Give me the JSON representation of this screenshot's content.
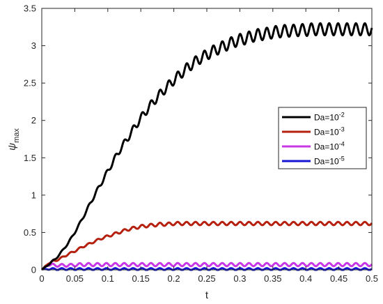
{
  "chart_data": {
    "type": "line",
    "xlabel": "t",
    "ylabel": "ψ",
    "ylabel_sub": "max",
    "xlim": [
      0,
      0.5
    ],
    "ylim": [
      0,
      3.5
    ],
    "xticks": [
      0,
      0.05,
      0.1,
      0.15,
      0.2,
      0.25,
      0.3,
      0.35,
      0.4,
      0.45,
      0.5
    ],
    "xtick_labels": [
      "0",
      "0.05",
      "0.1",
      "0.15",
      "0.2",
      "0.25",
      "0.3",
      "0.35",
      "0.4",
      "0.45",
      "0.5"
    ],
    "yticks": [
      0,
      0.5,
      1,
      1.5,
      2,
      2.5,
      3,
      3.5
    ],
    "ytick_labels": [
      "0",
      "0.5",
      "1",
      "1.5",
      "2",
      "2.5",
      "3",
      "3.5"
    ],
    "grid": false,
    "legend_position": "right",
    "series": [
      {
        "name": "Da=10",
        "name_sup": "-2",
        "color": "#000000",
        "x": [
          0,
          0.01,
          0.02,
          0.03,
          0.04,
          0.05,
          0.06,
          0.07,
          0.08,
          0.09,
          0.1,
          0.11,
          0.12,
          0.13,
          0.14,
          0.15,
          0.16,
          0.17,
          0.18,
          0.19,
          0.2,
          0.21,
          0.22,
          0.23,
          0.24,
          0.25,
          0.26,
          0.27,
          0.28,
          0.29,
          0.3,
          0.31,
          0.32,
          0.33,
          0.34,
          0.35,
          0.36,
          0.37,
          0.38,
          0.39,
          0.4,
          0.41,
          0.42,
          0.43,
          0.44,
          0.45,
          0.46,
          0.47,
          0.48,
          0.49,
          0.5
        ],
        "y": [
          0,
          0.07,
          0.14,
          0.24,
          0.36,
          0.5,
          0.66,
          0.83,
          1.0,
          1.16,
          1.32,
          1.48,
          1.63,
          1.76,
          1.9,
          2.03,
          2.15,
          2.26,
          2.36,
          2.45,
          2.54,
          2.62,
          2.7,
          2.77,
          2.83,
          2.88,
          2.93,
          2.97,
          3.01,
          3.05,
          3.08,
          3.1,
          3.13,
          3.15,
          3.16,
          3.18,
          3.19,
          3.2,
          3.2,
          3.21,
          3.21,
          3.22,
          3.22,
          3.22,
          3.22,
          3.22,
          3.22,
          3.22,
          3.22,
          3.22,
          3.22
        ]
      },
      {
        "name": "Da=10",
        "name_sup": "-3",
        "color": "#b5200f",
        "x": [
          0,
          0.01,
          0.02,
          0.03,
          0.04,
          0.05,
          0.06,
          0.07,
          0.08,
          0.09,
          0.1,
          0.11,
          0.12,
          0.13,
          0.14,
          0.15,
          0.16,
          0.17,
          0.18,
          0.19,
          0.2,
          0.22,
          0.25,
          0.3,
          0.35,
          0.4,
          0.45,
          0.5
        ],
        "y": [
          0,
          0.09,
          0.12,
          0.16,
          0.21,
          0.25,
          0.3,
          0.34,
          0.38,
          0.42,
          0.45,
          0.48,
          0.51,
          0.54,
          0.56,
          0.58,
          0.59,
          0.6,
          0.61,
          0.61,
          0.62,
          0.62,
          0.62,
          0.62,
          0.62,
          0.62,
          0.62,
          0.62
        ]
      },
      {
        "name": "Da=10",
        "name_sup": "-4",
        "color": "#c837e6",
        "x": [
          0,
          0.01,
          0.02,
          0.04,
          0.06,
          0.1,
          0.2,
          0.3,
          0.4,
          0.5
        ],
        "y": [
          0,
          0.07,
          0.06,
          0.06,
          0.07,
          0.07,
          0.07,
          0.07,
          0.07,
          0.07
        ]
      },
      {
        "name": "Da=10",
        "name_sup": "-5",
        "color": "#1414d2",
        "x": [
          0,
          0.1,
          0.2,
          0.3,
          0.4,
          0.5
        ],
        "y": [
          0.01,
          0.01,
          0.01,
          0.01,
          0.01,
          0.01
        ]
      }
    ]
  }
}
